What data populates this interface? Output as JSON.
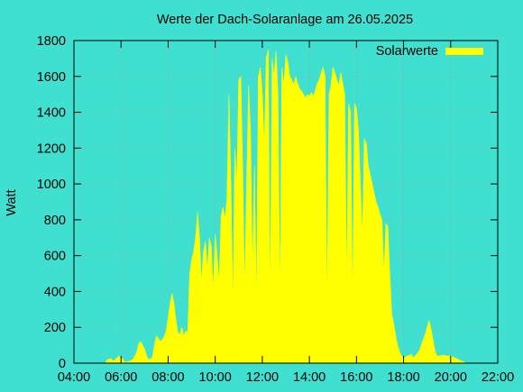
{
  "chart_data": {
    "type": "area",
    "title": "Werte der Dach-Solaranlage am 26.05.2025",
    "xlabel": "",
    "ylabel": "Watt",
    "x_ticks": [
      "04:00",
      "06:00",
      "08:00",
      "10:00",
      "12:00",
      "14:00",
      "16:00",
      "18:00",
      "20:00",
      "22:00"
    ],
    "y_ticks": [
      "0",
      "200",
      "400",
      "600",
      "800",
      "1000",
      "1200",
      "1400",
      "1600",
      "1800"
    ],
    "xlim": [
      "04:00",
      "22:00"
    ],
    "ylim": [
      0,
      1800
    ],
    "grid": true,
    "legend_position": "top-right",
    "colors": {
      "background": "#40e0d0",
      "series": "#ffff00",
      "grid": "#a0a0a0",
      "axis": "#000000"
    },
    "series": [
      {
        "name": "Solarwerte",
        "points": [
          [
            "05:20",
            0
          ],
          [
            "05:25",
            20
          ],
          [
            "05:35",
            25
          ],
          [
            "05:40",
            10
          ],
          [
            "05:50",
            30
          ],
          [
            "05:55",
            40
          ],
          [
            "06:05",
            20
          ],
          [
            "06:10",
            5
          ],
          [
            "06:20",
            10
          ],
          [
            "06:30",
            20
          ],
          [
            "06:40",
            60
          ],
          [
            "06:45",
            110
          ],
          [
            "06:50",
            120
          ],
          [
            "06:55",
            100
          ],
          [
            "07:00",
            80
          ],
          [
            "07:05",
            40
          ],
          [
            "07:10",
            20
          ],
          [
            "07:20",
            30
          ],
          [
            "07:25",
            100
          ],
          [
            "07:30",
            150
          ],
          [
            "07:35",
            140
          ],
          [
            "07:40",
            120
          ],
          [
            "07:45",
            130
          ],
          [
            "07:50",
            150
          ],
          [
            "07:55",
            180
          ],
          [
            "08:00",
            250
          ],
          [
            "08:05",
            330
          ],
          [
            "08:10",
            390
          ],
          [
            "08:15",
            330
          ],
          [
            "08:20",
            240
          ],
          [
            "08:25",
            170
          ],
          [
            "08:30",
            160
          ],
          [
            "08:35",
            200
          ],
          [
            "08:40",
            150
          ],
          [
            "08:45",
            180
          ],
          [
            "08:50",
            170
          ],
          [
            "08:55",
            500
          ],
          [
            "09:00",
            580
          ],
          [
            "09:05",
            620
          ],
          [
            "09:10",
            700
          ],
          [
            "09:15",
            840
          ],
          [
            "09:20",
            700
          ],
          [
            "09:25",
            450
          ],
          [
            "09:30",
            620
          ],
          [
            "09:35",
            680
          ],
          [
            "09:40",
            520
          ],
          [
            "09:45",
            700
          ],
          [
            "09:50",
            650
          ],
          [
            "09:55",
            400
          ],
          [
            "10:00",
            720
          ],
          [
            "10:05",
            600
          ],
          [
            "10:10",
            450
          ],
          [
            "10:15",
            820
          ],
          [
            "10:20",
            870
          ],
          [
            "10:25",
            800
          ],
          [
            "10:30",
            920
          ],
          [
            "10:35",
            1500
          ],
          [
            "10:40",
            1000
          ],
          [
            "10:45",
            300
          ],
          [
            "10:50",
            1200
          ],
          [
            "10:55",
            1000
          ],
          [
            "11:00",
            1580
          ],
          [
            "11:05",
            1600
          ],
          [
            "11:10",
            1100
          ],
          [
            "11:15",
            400
          ],
          [
            "11:20",
            1000
          ],
          [
            "11:25",
            1550
          ],
          [
            "11:30",
            1300
          ],
          [
            "11:35",
            500
          ],
          [
            "11:40",
            1100
          ],
          [
            "11:45",
            300
          ],
          [
            "11:50",
            1600
          ],
          [
            "11:55",
            1650
          ],
          [
            "12:00",
            1500
          ],
          [
            "12:05",
            1200
          ],
          [
            "12:10",
            1700
          ],
          [
            "12:15",
            1750
          ],
          [
            "12:20",
            300
          ],
          [
            "12:25",
            1700
          ],
          [
            "12:30",
            1600
          ],
          [
            "12:35",
            1740
          ],
          [
            "12:40",
            1500
          ],
          [
            "12:45",
            300
          ],
          [
            "12:50",
            1650
          ],
          [
            "12:55",
            1550
          ],
          [
            "13:00",
            1720
          ],
          [
            "13:05",
            1680
          ],
          [
            "13:10",
            1600
          ],
          [
            "13:15",
            1580
          ],
          [
            "13:20",
            1550
          ],
          [
            "13:25",
            1600
          ],
          [
            "13:30",
            1560
          ],
          [
            "13:35",
            1530
          ],
          [
            "13:40",
            1520
          ],
          [
            "13:45",
            1500
          ],
          [
            "13:50",
            1480
          ],
          [
            "13:55",
            1500
          ],
          [
            "14:00",
            1490
          ],
          [
            "14:05",
            1510
          ],
          [
            "14:10",
            1490
          ],
          [
            "14:15",
            1520
          ],
          [
            "14:20",
            1560
          ],
          [
            "14:25",
            1580
          ],
          [
            "14:30",
            1620
          ],
          [
            "14:35",
            1650
          ],
          [
            "14:40",
            1600
          ],
          [
            "14:45",
            280
          ],
          [
            "14:50",
            1500
          ],
          [
            "14:55",
            1550
          ],
          [
            "15:00",
            1650
          ],
          [
            "15:05",
            1620
          ],
          [
            "15:10",
            1580
          ],
          [
            "15:15",
            1550
          ],
          [
            "15:20",
            1620
          ],
          [
            "15:25",
            1560
          ],
          [
            "15:30",
            1500
          ],
          [
            "15:35",
            400
          ],
          [
            "15:40",
            1450
          ],
          [
            "15:45",
            1400
          ],
          [
            "15:50",
            300
          ],
          [
            "15:55",
            1450
          ],
          [
            "16:00",
            1420
          ],
          [
            "16:05",
            1300
          ],
          [
            "16:10",
            1000
          ],
          [
            "16:15",
            700
          ],
          [
            "16:20",
            1250
          ],
          [
            "16:25",
            1230
          ],
          [
            "16:30",
            1100
          ],
          [
            "16:35",
            1050
          ],
          [
            "16:40",
            1000
          ],
          [
            "16:45",
            950
          ],
          [
            "16:50",
            900
          ],
          [
            "16:55",
            870
          ],
          [
            "17:00",
            830
          ],
          [
            "17:05",
            800
          ],
          [
            "17:10",
            500
          ],
          [
            "17:15",
            780
          ],
          [
            "17:20",
            760
          ],
          [
            "17:25",
            500
          ],
          [
            "17:30",
            270
          ],
          [
            "17:35",
            220
          ],
          [
            "17:40",
            150
          ],
          [
            "17:45",
            100
          ],
          [
            "17:50",
            60
          ],
          [
            "17:55",
            40
          ],
          [
            "18:00",
            30
          ],
          [
            "18:10",
            40
          ],
          [
            "18:20",
            50
          ],
          [
            "18:25",
            30
          ],
          [
            "18:30",
            40
          ],
          [
            "18:40",
            70
          ],
          [
            "18:45",
            100
          ],
          [
            "18:50",
            130
          ],
          [
            "18:55",
            160
          ],
          [
            "19:00",
            200
          ],
          [
            "19:05",
            240
          ],
          [
            "19:10",
            190
          ],
          [
            "19:15",
            130
          ],
          [
            "19:20",
            70
          ],
          [
            "19:25",
            40
          ],
          [
            "19:30",
            40
          ],
          [
            "19:40",
            45
          ],
          [
            "19:50",
            40
          ],
          [
            "20:00",
            40
          ],
          [
            "20:10",
            30
          ],
          [
            "20:20",
            20
          ],
          [
            "20:30",
            10
          ],
          [
            "20:40",
            0
          ]
        ]
      }
    ]
  }
}
